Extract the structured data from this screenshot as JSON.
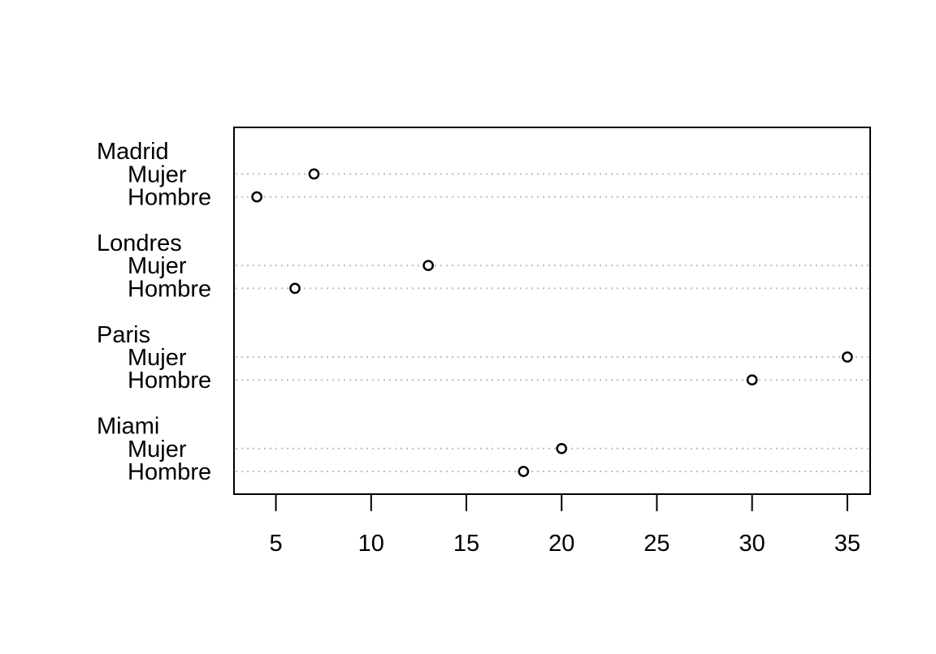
{
  "chart_data": {
    "type": "dotchart",
    "title": "",
    "xlabel": "",
    "ylabel": "",
    "xlim": [
      2.8,
      36.2
    ],
    "x_ticks": [
      5,
      10,
      15,
      20,
      25,
      30,
      35
    ],
    "grid": "dotted horizontal lines per row",
    "marker": "open circle",
    "groups": [
      {
        "name": "Madrid",
        "rows": [
          {
            "label": "Mujer",
            "value": 7
          },
          {
            "label": "Hombre",
            "value": 4
          }
        ]
      },
      {
        "name": "Londres",
        "rows": [
          {
            "label": "Mujer",
            "value": 13
          },
          {
            "label": "Hombre",
            "value": 6
          }
        ]
      },
      {
        "name": "Paris",
        "rows": [
          {
            "label": "Mujer",
            "value": 35
          },
          {
            "label": "Hombre",
            "value": 30
          }
        ]
      },
      {
        "name": "Miami",
        "rows": [
          {
            "label": "Mujer",
            "value": 20
          },
          {
            "label": "Hombre",
            "value": 18
          }
        ]
      }
    ]
  }
}
